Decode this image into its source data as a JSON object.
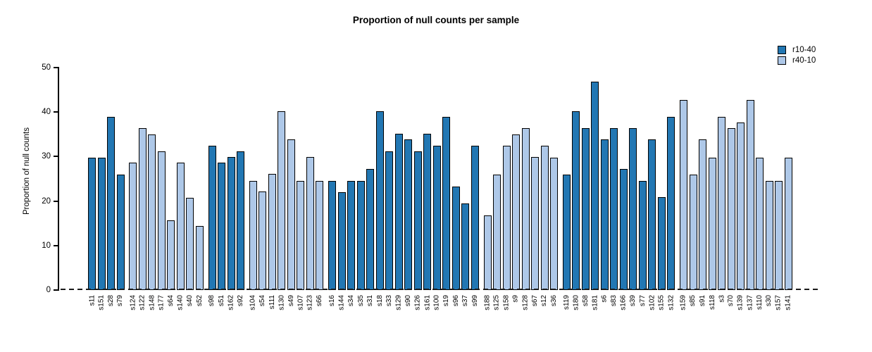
{
  "chart_data": {
    "type": "bar",
    "title": "Proportion of null counts per sample",
    "ylabel": "Proportion of null counts",
    "ylim": [
      0,
      50
    ],
    "yticks": [
      "0",
      "10",
      "20",
      "30",
      "40",
      "50"
    ],
    "grid": false,
    "legend_position": "top-right",
    "zero_line": "dashed",
    "series": [
      {
        "name": "r10-40",
        "color": "#2277b3"
      },
      {
        "name": "r40-10",
        "color": "#aec8e8"
      }
    ],
    "group_sizes": [
      4,
      8,
      4,
      8,
      16,
      8,
      12,
      12
    ],
    "bars": [
      {
        "label": "s11",
        "value": 29.8,
        "series": "r10-40"
      },
      {
        "label": "s151",
        "value": 29.8,
        "series": "r10-40"
      },
      {
        "label": "s28",
        "value": 38.9,
        "series": "r10-40"
      },
      {
        "label": "s79",
        "value": 26.0,
        "series": "r10-40"
      },
      {
        "label": "s124",
        "value": 28.6,
        "series": "r40-10"
      },
      {
        "label": "s122",
        "value": 36.4,
        "series": "r40-10"
      },
      {
        "label": "s148",
        "value": 35.0,
        "series": "r40-10"
      },
      {
        "label": "s177",
        "value": 31.2,
        "series": "r40-10"
      },
      {
        "label": "s64",
        "value": 15.6,
        "series": "r40-10"
      },
      {
        "label": "s140",
        "value": 28.6,
        "series": "r40-10"
      },
      {
        "label": "s40",
        "value": 20.8,
        "series": "r40-10"
      },
      {
        "label": "s52",
        "value": 14.4,
        "series": "r40-10"
      },
      {
        "label": "s98",
        "value": 32.5,
        "series": "r10-40"
      },
      {
        "label": "s51",
        "value": 28.6,
        "series": "r10-40"
      },
      {
        "label": "s162",
        "value": 29.9,
        "series": "r10-40"
      },
      {
        "label": "s92",
        "value": 31.2,
        "series": "r10-40"
      },
      {
        "label": "s104",
        "value": 24.6,
        "series": "r40-10"
      },
      {
        "label": "s54",
        "value": 22.1,
        "series": "r40-10"
      },
      {
        "label": "s111",
        "value": 26.1,
        "series": "r40-10"
      },
      {
        "label": "s130",
        "value": 40.2,
        "series": "r40-10"
      },
      {
        "label": "s49",
        "value": 33.9,
        "series": "r40-10"
      },
      {
        "label": "s107",
        "value": 24.6,
        "series": "r40-10"
      },
      {
        "label": "s123",
        "value": 29.9,
        "series": "r40-10"
      },
      {
        "label": "s66",
        "value": 24.6,
        "series": "r40-10"
      },
      {
        "label": "s16",
        "value": 24.6,
        "series": "r10-40"
      },
      {
        "label": "s144",
        "value": 22.0,
        "series": "r10-40"
      },
      {
        "label": "s34",
        "value": 24.6,
        "series": "r10-40"
      },
      {
        "label": "s35",
        "value": 24.6,
        "series": "r10-40"
      },
      {
        "label": "s31",
        "value": 27.3,
        "series": "r10-40"
      },
      {
        "label": "s18",
        "value": 40.2,
        "series": "r10-40"
      },
      {
        "label": "s33",
        "value": 31.2,
        "series": "r10-40"
      },
      {
        "label": "s129",
        "value": 35.1,
        "series": "r10-40"
      },
      {
        "label": "s90",
        "value": 33.8,
        "series": "r10-40"
      },
      {
        "label": "s126",
        "value": 31.2,
        "series": "r10-40"
      },
      {
        "label": "s161",
        "value": 35.1,
        "series": "r10-40"
      },
      {
        "label": "s100",
        "value": 32.5,
        "series": "r10-40"
      },
      {
        "label": "s19",
        "value": 39.0,
        "series": "r10-40"
      },
      {
        "label": "s96",
        "value": 23.2,
        "series": "r10-40"
      },
      {
        "label": "s37",
        "value": 19.4,
        "series": "r10-40"
      },
      {
        "label": "s99",
        "value": 32.5,
        "series": "r10-40"
      },
      {
        "label": "s188",
        "value": 16.8,
        "series": "r40-10"
      },
      {
        "label": "s125",
        "value": 26.0,
        "series": "r40-10"
      },
      {
        "label": "s158",
        "value": 32.5,
        "series": "r40-10"
      },
      {
        "label": "s9",
        "value": 35.0,
        "series": "r40-10"
      },
      {
        "label": "s128",
        "value": 36.4,
        "series": "r40-10"
      },
      {
        "label": "s67",
        "value": 29.9,
        "series": "r40-10"
      },
      {
        "label": "s12",
        "value": 32.5,
        "series": "r40-10"
      },
      {
        "label": "s36",
        "value": 29.8,
        "series": "r40-10"
      },
      {
        "label": "s119",
        "value": 26.0,
        "series": "r10-40"
      },
      {
        "label": "s180",
        "value": 40.2,
        "series": "r10-40"
      },
      {
        "label": "s58",
        "value": 36.4,
        "series": "r10-40"
      },
      {
        "label": "s181",
        "value": 46.8,
        "series": "r10-40"
      },
      {
        "label": "s6",
        "value": 33.8,
        "series": "r10-40"
      },
      {
        "label": "s83",
        "value": 36.4,
        "series": "r10-40"
      },
      {
        "label": "s166",
        "value": 27.3,
        "series": "r10-40"
      },
      {
        "label": "s39",
        "value": 36.4,
        "series": "r10-40"
      },
      {
        "label": "s77",
        "value": 24.6,
        "series": "r10-40"
      },
      {
        "label": "s102",
        "value": 33.8,
        "series": "r10-40"
      },
      {
        "label": "s155",
        "value": 20.9,
        "series": "r10-40"
      },
      {
        "label": "s132",
        "value": 38.9,
        "series": "r10-40"
      },
      {
        "label": "s159",
        "value": 42.8,
        "series": "r40-10"
      },
      {
        "label": "s85",
        "value": 26.0,
        "series": "r40-10"
      },
      {
        "label": "s91",
        "value": 33.8,
        "series": "r40-10"
      },
      {
        "label": "s118",
        "value": 29.8,
        "series": "r40-10"
      },
      {
        "label": "s3",
        "value": 38.9,
        "series": "r40-10"
      },
      {
        "label": "s70",
        "value": 36.4,
        "series": "r40-10"
      },
      {
        "label": "s139",
        "value": 37.7,
        "series": "r40-10"
      },
      {
        "label": "s137",
        "value": 42.8,
        "series": "r40-10"
      },
      {
        "label": "s110",
        "value": 29.8,
        "series": "r40-10"
      },
      {
        "label": "s30",
        "value": 24.5,
        "series": "r40-10"
      },
      {
        "label": "s157",
        "value": 24.5,
        "series": "r40-10"
      },
      {
        "label": "s141",
        "value": 29.8,
        "series": "r40-10"
      }
    ]
  }
}
